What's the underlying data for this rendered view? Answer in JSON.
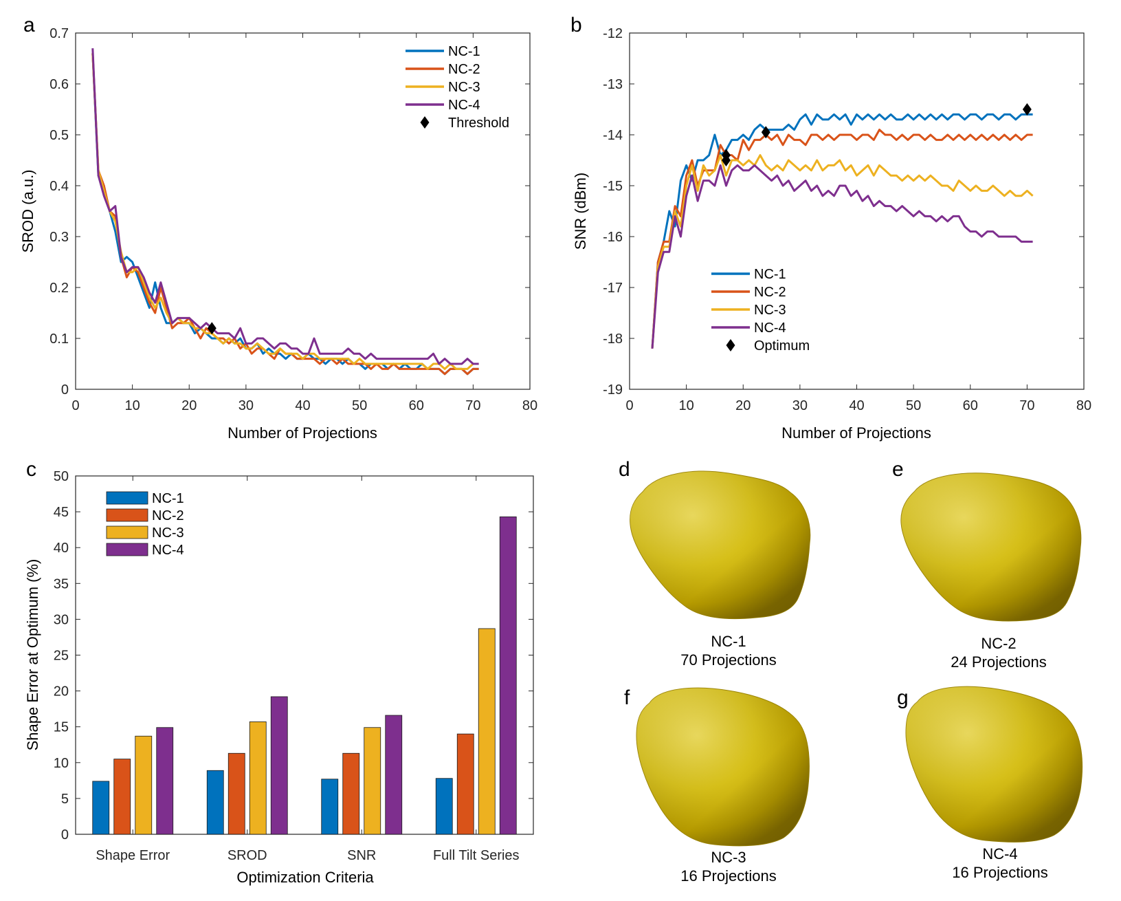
{
  "panel_letters": {
    "a": "a",
    "b": "b",
    "c": "c",
    "d": "d",
    "e": "e",
    "f": "f",
    "g": "g"
  },
  "colors": {
    "NC-1": "#0072BD",
    "NC-2": "#D95319",
    "NC-3": "#EDB120",
    "NC-4": "#7E2F8E",
    "marker": "#000000",
    "gold": "#D4B400"
  },
  "chart_data": [
    {
      "id": "a",
      "type": "line",
      "xlabel": "Number of Projections",
      "ylabel": "SROD (a.u.)",
      "xlim": [
        0,
        80
      ],
      "ylim": [
        0,
        0.7
      ],
      "xticks": [
        "0",
        "10",
        "20",
        "30",
        "40",
        "50",
        "60",
        "70",
        "80"
      ],
      "yticks": [
        "0",
        "0.1",
        "0.2",
        "0.3",
        "0.4",
        "0.5",
        "0.6",
        "0.7"
      ],
      "legend": [
        "NC-1",
        "NC-2",
        "NC-3",
        "NC-4",
        "Threshold"
      ],
      "legend_position": "top-right",
      "x": [
        3,
        4,
        5,
        6,
        7,
        8,
        9,
        10,
        11,
        12,
        13,
        14,
        15,
        16,
        17,
        18,
        19,
        20,
        21,
        22,
        23,
        24,
        25,
        26,
        27,
        28,
        29,
        30,
        31,
        32,
        33,
        34,
        35,
        36,
        37,
        38,
        39,
        40,
        41,
        42,
        43,
        44,
        45,
        46,
        47,
        48,
        49,
        50,
        51,
        52,
        53,
        54,
        55,
        56,
        57,
        58,
        59,
        60,
        61,
        62,
        63,
        64,
        65,
        66,
        67,
        68,
        69,
        70,
        71
      ],
      "series": [
        {
          "name": "NC-1",
          "values": [
            0.66,
            0.42,
            0.39,
            0.35,
            0.31,
            0.25,
            0.26,
            0.25,
            0.22,
            0.19,
            0.16,
            0.21,
            0.16,
            0.13,
            0.13,
            0.14,
            0.13,
            0.13,
            0.11,
            0.12,
            0.11,
            0.1,
            0.1,
            0.09,
            0.1,
            0.09,
            0.1,
            0.08,
            0.08,
            0.09,
            0.07,
            0.08,
            0.07,
            0.07,
            0.06,
            0.07,
            0.06,
            0.06,
            0.07,
            0.06,
            0.06,
            0.05,
            0.06,
            0.06,
            0.05,
            0.06,
            0.05,
            0.05,
            0.04,
            0.05,
            0.05,
            0.05,
            0.04,
            0.05,
            0.04,
            0.05,
            0.04,
            0.04,
            0.05,
            0.04,
            0.04,
            0.04,
            0.03,
            0.04,
            0.04,
            0.04,
            0.03,
            0.04,
            0.04
          ]
        },
        {
          "name": "NC-2",
          "values": [
            0.66,
            0.43,
            0.4,
            0.35,
            0.34,
            0.26,
            0.22,
            0.24,
            0.23,
            0.2,
            0.17,
            0.15,
            0.2,
            0.16,
            0.12,
            0.13,
            0.13,
            0.14,
            0.12,
            0.1,
            0.12,
            0.11,
            0.1,
            0.1,
            0.09,
            0.1,
            0.08,
            0.09,
            0.07,
            0.08,
            0.08,
            0.07,
            0.06,
            0.08,
            0.07,
            0.07,
            0.06,
            0.06,
            0.06,
            0.06,
            0.05,
            0.06,
            0.06,
            0.05,
            0.06,
            0.05,
            0.05,
            0.05,
            0.05,
            0.04,
            0.05,
            0.04,
            0.04,
            0.05,
            0.04,
            0.04,
            0.04,
            0.04,
            0.04,
            0.04,
            0.04,
            0.04,
            0.03,
            0.04,
            0.04,
            0.04,
            0.03,
            0.04,
            0.04
          ]
        },
        {
          "name": "NC-3",
          "values": [
            0.66,
            0.43,
            0.39,
            0.35,
            0.33,
            0.27,
            0.23,
            0.23,
            0.24,
            0.21,
            0.18,
            0.16,
            0.18,
            0.15,
            0.13,
            0.14,
            0.13,
            0.13,
            0.12,
            0.12,
            0.11,
            0.11,
            0.1,
            0.09,
            0.1,
            0.09,
            0.09,
            0.08,
            0.08,
            0.09,
            0.08,
            0.07,
            0.07,
            0.08,
            0.07,
            0.07,
            0.07,
            0.06,
            0.07,
            0.07,
            0.06,
            0.06,
            0.06,
            0.06,
            0.06,
            0.06,
            0.05,
            0.06,
            0.05,
            0.05,
            0.05,
            0.05,
            0.05,
            0.05,
            0.05,
            0.05,
            0.05,
            0.05,
            0.05,
            0.04,
            0.05,
            0.05,
            0.04,
            0.05,
            0.04,
            0.04,
            0.04,
            0.05,
            0.05
          ]
        },
        {
          "name": "NC-4",
          "values": [
            0.67,
            0.42,
            0.38,
            0.35,
            0.36,
            0.26,
            0.23,
            0.24,
            0.24,
            0.22,
            0.19,
            0.17,
            0.21,
            0.17,
            0.13,
            0.14,
            0.14,
            0.14,
            0.13,
            0.12,
            0.13,
            0.12,
            0.11,
            0.11,
            0.11,
            0.1,
            0.12,
            0.09,
            0.09,
            0.1,
            0.1,
            0.09,
            0.08,
            0.09,
            0.09,
            0.08,
            0.08,
            0.07,
            0.07,
            0.1,
            0.07,
            0.07,
            0.07,
            0.07,
            0.07,
            0.08,
            0.07,
            0.07,
            0.06,
            0.07,
            0.06,
            0.06,
            0.06,
            0.06,
            0.06,
            0.06,
            0.06,
            0.06,
            0.06,
            0.06,
            0.07,
            0.05,
            0.06,
            0.05,
            0.05,
            0.05,
            0.06,
            0.05,
            0.05
          ]
        }
      ],
      "markers": [
        {
          "label": "Threshold",
          "x": 24,
          "y": 0.12
        }
      ]
    },
    {
      "id": "b",
      "type": "line",
      "xlabel": "Number of Projections",
      "ylabel": "SNR (dBm)",
      "xlim": [
        0,
        80
      ],
      "ylim": [
        -19,
        -12
      ],
      "xticks": [
        "0",
        "10",
        "20",
        "30",
        "40",
        "50",
        "60",
        "70",
        "80"
      ],
      "yticks": [
        "-19",
        "-18",
        "-17",
        "-16",
        "-15",
        "-14",
        "-13",
        "-12"
      ],
      "legend": [
        "NC-1",
        "NC-2",
        "NC-3",
        "NC-4",
        "Optimum"
      ],
      "legend_position": "lower-center",
      "x": [
        4,
        5,
        6,
        7,
        8,
        9,
        10,
        11,
        12,
        13,
        14,
        15,
        16,
        17,
        18,
        19,
        20,
        21,
        22,
        23,
        24,
        25,
        26,
        27,
        28,
        29,
        30,
        31,
        32,
        33,
        34,
        35,
        36,
        37,
        38,
        39,
        40,
        41,
        42,
        43,
        44,
        45,
        46,
        47,
        48,
        49,
        50,
        51,
        52,
        53,
        54,
        55,
        56,
        57,
        58,
        59,
        60,
        61,
        62,
        63,
        64,
        65,
        66,
        67,
        68,
        69,
        70,
        71
      ],
      "series": [
        {
          "name": "NC-1",
          "values": [
            -18.2,
            -16.5,
            -16.1,
            -15.5,
            -15.8,
            -14.9,
            -14.6,
            -14.9,
            -14.5,
            -14.5,
            -14.4,
            -14.0,
            -14.4,
            -14.3,
            -14.1,
            -14.1,
            -14.0,
            -14.1,
            -13.9,
            -13.8,
            -13.9,
            -13.9,
            -13.9,
            -13.9,
            -13.8,
            -13.9,
            -13.7,
            -13.6,
            -13.8,
            -13.6,
            -13.7,
            -13.7,
            -13.6,
            -13.7,
            -13.6,
            -13.8,
            -13.6,
            -13.7,
            -13.6,
            -13.7,
            -13.6,
            -13.7,
            -13.6,
            -13.7,
            -13.7,
            -13.6,
            -13.7,
            -13.6,
            -13.7,
            -13.6,
            -13.7,
            -13.6,
            -13.7,
            -13.6,
            -13.6,
            -13.7,
            -13.6,
            -13.6,
            -13.7,
            -13.6,
            -13.6,
            -13.7,
            -13.6,
            -13.6,
            -13.7,
            -13.6,
            -13.6,
            -13.6
          ]
        },
        {
          "name": "NC-2",
          "values": [
            -18.2,
            -16.5,
            -16.1,
            -16.1,
            -15.4,
            -15.6,
            -14.8,
            -14.5,
            -15.0,
            -14.7,
            -14.7,
            -14.7,
            -14.2,
            -14.4,
            -14.4,
            -14.5,
            -14.1,
            -14.3,
            -14.1,
            -14.1,
            -14.0,
            -14.1,
            -14.0,
            -14.2,
            -14.0,
            -14.1,
            -14.1,
            -14.2,
            -14.0,
            -14.0,
            -14.1,
            -14.0,
            -14.1,
            -14.0,
            -14.0,
            -14.0,
            -14.1,
            -14.0,
            -14.0,
            -14.1,
            -13.9,
            -14.0,
            -14.0,
            -14.1,
            -14.0,
            -14.1,
            -14.0,
            -14.0,
            -14.1,
            -14.0,
            -14.1,
            -14.1,
            -14.0,
            -14.1,
            -14.0,
            -14.1,
            -14.0,
            -14.1,
            -14.0,
            -14.1,
            -14.0,
            -14.1,
            -14.0,
            -14.1,
            -14.0,
            -14.1,
            -14.0,
            -14.0
          ]
        },
        {
          "name": "NC-3",
          "values": [
            -18.2,
            -16.6,
            -16.2,
            -16.2,
            -15.5,
            -15.8,
            -15.0,
            -14.6,
            -15.1,
            -14.6,
            -14.8,
            -14.7,
            -14.4,
            -14.8,
            -14.5,
            -14.5,
            -14.6,
            -14.5,
            -14.6,
            -14.4,
            -14.6,
            -14.7,
            -14.6,
            -14.7,
            -14.5,
            -14.6,
            -14.7,
            -14.6,
            -14.7,
            -14.5,
            -14.7,
            -14.6,
            -14.6,
            -14.5,
            -14.7,
            -14.6,
            -14.8,
            -14.7,
            -14.6,
            -14.8,
            -14.6,
            -14.7,
            -14.8,
            -14.8,
            -14.9,
            -14.8,
            -14.9,
            -14.8,
            -14.9,
            -14.8,
            -14.9,
            -15.0,
            -15.0,
            -15.1,
            -14.9,
            -15.0,
            -15.1,
            -15.0,
            -15.1,
            -15.1,
            -15.0,
            -15.1,
            -15.2,
            -15.1,
            -15.2,
            -15.2,
            -15.1,
            -15.2
          ]
        },
        {
          "name": "NC-4",
          "values": [
            -18.2,
            -16.7,
            -16.3,
            -16.3,
            -15.6,
            -16.0,
            -15.2,
            -14.8,
            -15.3,
            -14.9,
            -14.9,
            -15.0,
            -14.6,
            -15.0,
            -14.7,
            -14.6,
            -14.7,
            -14.7,
            -14.6,
            -14.7,
            -14.8,
            -14.9,
            -14.8,
            -15.0,
            -14.9,
            -15.1,
            -15.0,
            -14.9,
            -15.1,
            -15.0,
            -15.2,
            -15.1,
            -15.2,
            -15.0,
            -15.0,
            -15.2,
            -15.1,
            -15.3,
            -15.2,
            -15.4,
            -15.3,
            -15.4,
            -15.4,
            -15.5,
            -15.4,
            -15.5,
            -15.6,
            -15.5,
            -15.6,
            -15.6,
            -15.7,
            -15.6,
            -15.7,
            -15.6,
            -15.6,
            -15.8,
            -15.9,
            -15.9,
            -16.0,
            -15.9,
            -15.9,
            -16.0,
            -16.0,
            -16.0,
            -16.0,
            -16.1,
            -16.1,
            -16.1
          ]
        }
      ],
      "markers": [
        {
          "label": "Optimum",
          "x": 17,
          "y": -14.4
        },
        {
          "label": "Optimum",
          "x": 17,
          "y": -14.5
        },
        {
          "label": "Optimum",
          "x": 24,
          "y": -13.95
        },
        {
          "label": "Optimum",
          "x": 70,
          "y": -13.5
        }
      ]
    },
    {
      "id": "c",
      "type": "bar",
      "xlabel": "Optimization Criteria",
      "ylabel": "Shape Error at Optimum (%)",
      "ylim": [
        0,
        50
      ],
      "yticks": [
        "0",
        "5",
        "10",
        "15",
        "20",
        "25",
        "30",
        "35",
        "40",
        "45",
        "50"
      ],
      "categories": [
        "Shape Error",
        "SROD",
        "SNR",
        "Full Tilt Series"
      ],
      "legend": [
        "NC-1",
        "NC-2",
        "NC-3",
        "NC-4"
      ],
      "legend_position": "top-left",
      "series": [
        {
          "name": "NC-1",
          "values": [
            7.4,
            8.9,
            7.7,
            7.8
          ]
        },
        {
          "name": "NC-2",
          "values": [
            10.5,
            11.3,
            11.3,
            14.0
          ]
        },
        {
          "name": "NC-3",
          "values": [
            13.7,
            15.7,
            14.9,
            28.7
          ]
        },
        {
          "name": "NC-4",
          "values": [
            14.9,
            19.2,
            16.6,
            44.3
          ]
        }
      ]
    }
  ],
  "renderings": [
    {
      "panel": "d",
      "line1": "NC-1",
      "line2": "70 Projections"
    },
    {
      "panel": "e",
      "line1": "NC-2",
      "line2": "24 Projections"
    },
    {
      "panel": "f",
      "line1": "NC-3",
      "line2": "16 Projections"
    },
    {
      "panel": "g",
      "line1": "NC-4",
      "line2": "16 Projections"
    }
  ]
}
